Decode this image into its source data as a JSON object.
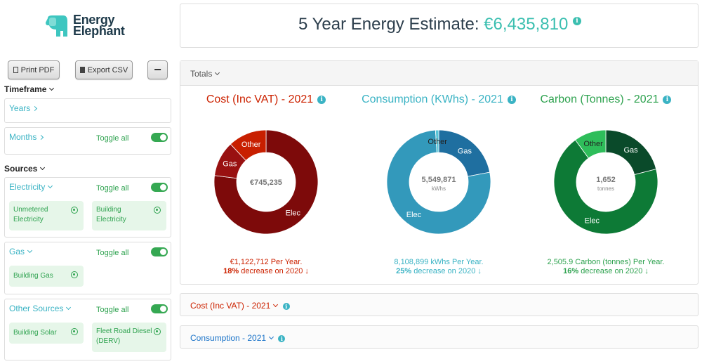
{
  "logo": {
    "line1": "Energy",
    "line2": "Elephant"
  },
  "toolbar": {
    "print_label": "Print PDF",
    "export_label": "Export CSV",
    "collapse_label": "−"
  },
  "sidebar": {
    "timeframe_label": "Timeframe",
    "years_label": "Years",
    "months_label": "Months",
    "toggle_all_label": "Toggle all",
    "sources_label": "Sources",
    "electricity": {
      "label": "Electricity",
      "items": [
        "Unmetered Electricity",
        "Building Electricity"
      ]
    },
    "gas": {
      "label": "Gas",
      "items": [
        "Building Gas"
      ]
    },
    "other": {
      "label": "Other Sources",
      "items": [
        "Building Solar",
        "Fleet Road Diesel (DERV)"
      ]
    }
  },
  "header": {
    "title_prefix": "5 Year Energy Estimate:",
    "title_value": "€6,435,810"
  },
  "totals_label": "Totals",
  "colors": {
    "cost": "#cc2200",
    "consumption": "#3ab3c4",
    "carbon": "#2ea24f",
    "link": "#1a73c8"
  },
  "chart_data": [
    {
      "type": "pie",
      "title": "Cost (Inc VAT) - 2021",
      "center_label": "€745,235",
      "center_unit": "",
      "categories": [
        "Elec",
        "Gas",
        "Other"
      ],
      "values": [
        77,
        11,
        12
      ],
      "colors": [
        "#7d0a0a",
        "#991111",
        "#c81f00"
      ],
      "per_year": "€1,122,712 Per Year.",
      "change_pct": "18%",
      "change_text": "decrease on 2020"
    },
    {
      "type": "pie",
      "title": "Consumption (KWhs) - 2021",
      "center_label": "5,549,871",
      "center_unit": "kWhs",
      "categories": [
        "Gas",
        "Elec",
        "Other"
      ],
      "values": [
        22,
        77,
        1
      ],
      "colors": [
        "#1f6fa0",
        "#3399bb",
        "#56c5d8"
      ],
      "per_year": "8,108,899 kWhs Per Year.",
      "change_pct": "25%",
      "change_text": "decrease on 2020"
    },
    {
      "type": "pie",
      "title": "Carbon (Tonnes) - 2021",
      "center_label": "1,652",
      "center_unit": "tonnes",
      "categories": [
        "Gas",
        "Elec",
        "Other"
      ],
      "values": [
        21,
        69,
        10
      ],
      "colors": [
        "#0a4a2a",
        "#0d7a36",
        "#2ebd5a"
      ],
      "per_year": "2,505.9 Carbon (tonnes) Per Year.",
      "change_pct": "16%",
      "change_text": "decrease on 2020"
    }
  ],
  "sections": {
    "cost_label": "Cost (Inc VAT) - 2021",
    "consumption_label": "Consumption - 2021"
  }
}
